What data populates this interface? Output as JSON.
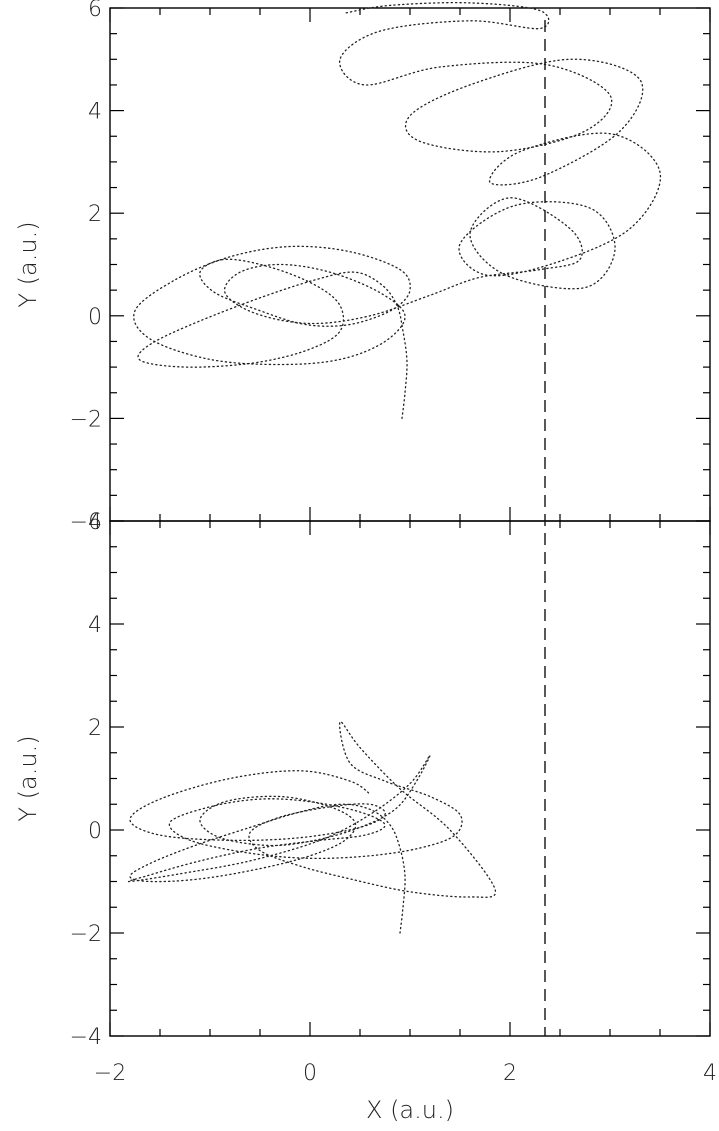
{
  "chart_data": {
    "type": "line",
    "xlabel": "X (a.u.)",
    "xlim": [
      -2,
      4
    ],
    "x_ticks": [
      "−2",
      "0",
      "2",
      "4"
    ],
    "reference_line_x": 2.35,
    "line_style": "dotted",
    "panels": [
      {
        "ylabel": "Y (a.u.)",
        "ylim": [
          -4,
          6
        ],
        "y_ticks": [
          "−4",
          "−2",
          "0",
          "2",
          "4",
          "6"
        ],
        "series": [
          {
            "x": [
              0.92,
              0.95,
              0.97,
              0.93,
              0.87,
              0.72,
              0.45,
              0.05,
              -0.5,
              -1.1,
              -1.55,
              -1.72,
              -1.55,
              -1.1,
              -0.5,
              0.0,
              0.3,
              0.3,
              0.05,
              -0.4,
              -0.85,
              -1.1,
              -0.95,
              -0.5,
              -0.1,
              0.25,
              0.55,
              0.85,
              1.0,
              0.9,
              0.4,
              -0.2,
              -0.8,
              -1.35,
              -1.75,
              -1.6,
              -1.0,
              -0.3,
              0.3,
              0.75,
              0.95,
              0.7,
              0.2,
              -0.3,
              -0.7,
              -0.85,
              -0.55,
              0.0,
              0.6,
              1.2,
              1.7,
              2.3,
              2.7,
              2.6,
              2.0,
              1.6,
              1.95,
              2.75,
              3.05,
              2.8,
              2.05,
              1.5,
              1.75,
              2.4,
              3.2,
              3.5,
              3.0,
              2.1,
              1.8,
              2.3,
              3.1,
              3.3,
              2.6,
              1.6,
              1.0,
              1.1,
              1.9,
              2.75,
              3.0,
              2.35,
              1.3,
              0.55,
              0.3,
              0.7,
              1.6,
              2.3,
              2.3,
              1.6,
              0.8,
              0.35
            ],
            "y": [
              -2.0,
              -1.5,
              -0.9,
              -0.3,
              0.2,
              0.6,
              0.85,
              0.7,
              0.35,
              -0.1,
              -0.5,
              -0.8,
              -0.95,
              -1.0,
              -0.9,
              -0.65,
              -0.3,
              0.2,
              0.6,
              0.95,
              1.1,
              0.85,
              0.45,
              0.1,
              -0.15,
              -0.2,
              -0.1,
              0.15,
              0.5,
              0.9,
              1.25,
              1.35,
              1.15,
              0.7,
              0.1,
              -0.45,
              -0.85,
              -0.95,
              -0.85,
              -0.5,
              0.0,
              0.45,
              0.85,
              1.0,
              0.85,
              0.45,
              0.05,
              -0.15,
              0.0,
              0.4,
              0.75,
              0.9,
              1.1,
              1.7,
              2.3,
              1.6,
              0.8,
              0.55,
              1.3,
              2.1,
              2.15,
              1.4,
              0.8,
              1.0,
              1.7,
              2.8,
              3.55,
              3.2,
              2.6,
              2.7,
              3.6,
              4.6,
              5.0,
              4.5,
              3.9,
              3.4,
              3.2,
              3.6,
              4.3,
              4.9,
              4.85,
              4.5,
              5.0,
              5.55,
              5.75,
              5.6,
              5.95,
              6.1,
              6.05,
              5.9
            ]
          }
        ]
      },
      {
        "ylabel": "Y (a.u.)",
        "ylim": [
          -4,
          6
        ],
        "y_ticks": [
          "−4",
          "−2",
          "0",
          "2",
          "4",
          "6"
        ],
        "series": [
          {
            "x": [
              0.9,
              0.93,
              0.95,
              0.9,
              0.8,
              0.6,
              0.3,
              -0.1,
              -0.6,
              -1.15,
              -1.6,
              -1.8,
              -1.6,
              -1.1,
              -0.5,
              0.0,
              0.35,
              0.45,
              0.2,
              -0.3,
              -0.85,
              -1.1,
              -0.9,
              -0.4,
              0.05,
              0.5,
              0.85,
              1.05,
              1.2,
              1.0,
              0.6,
              0.1,
              -0.6,
              -1.3,
              -1.8,
              -1.65,
              -1.1,
              -0.5,
              0.1,
              0.55,
              0.75,
              0.5,
              0.0,
              -0.5,
              -1.0,
              -1.4,
              -1.2,
              -0.6,
              0.0,
              0.6,
              1.1,
              1.45,
              1.5,
              1.2,
              0.75,
              0.4,
              0.3,
              0.5,
              0.9,
              1.4,
              1.85,
              1.6,
              1.0,
              0.4,
              -0.1,
              -0.5,
              -0.6,
              -0.3,
              0.2,
              0.6,
              0.75,
              0.5,
              -0.1,
              -0.8,
              -1.5,
              -1.8,
              -1.5,
              -0.8,
              -0.1,
              0.4,
              0.6
            ],
            "y": [
              -2.0,
              -1.5,
              -0.9,
              -0.35,
              0.1,
              0.4,
              0.5,
              0.35,
              0.05,
              -0.3,
              -0.65,
              -0.9,
              -1.0,
              -0.95,
              -0.75,
              -0.5,
              -0.2,
              0.15,
              0.45,
              0.65,
              0.55,
              0.2,
              -0.15,
              -0.3,
              -0.2,
              0.05,
              0.4,
              0.9,
              1.45,
              0.9,
              0.3,
              -0.2,
              -0.6,
              -0.85,
              -1.0,
              -0.9,
              -0.6,
              -0.35,
              -0.2,
              -0.1,
              0.1,
              0.35,
              0.55,
              0.6,
              0.45,
              0.15,
              -0.2,
              -0.45,
              -0.55,
              -0.5,
              -0.35,
              -0.1,
              0.3,
              0.65,
              0.95,
              1.3,
              2.1,
              1.6,
              0.8,
              0.0,
              -1.15,
              -1.3,
              -1.2,
              -0.95,
              -0.7,
              -0.4,
              -0.05,
              0.25,
              0.45,
              0.5,
              0.3,
              0.05,
              -0.15,
              -0.2,
              -0.1,
              0.2,
              0.6,
              1.0,
              1.15,
              0.95,
              0.7
            ]
          }
        ]
      }
    ]
  }
}
